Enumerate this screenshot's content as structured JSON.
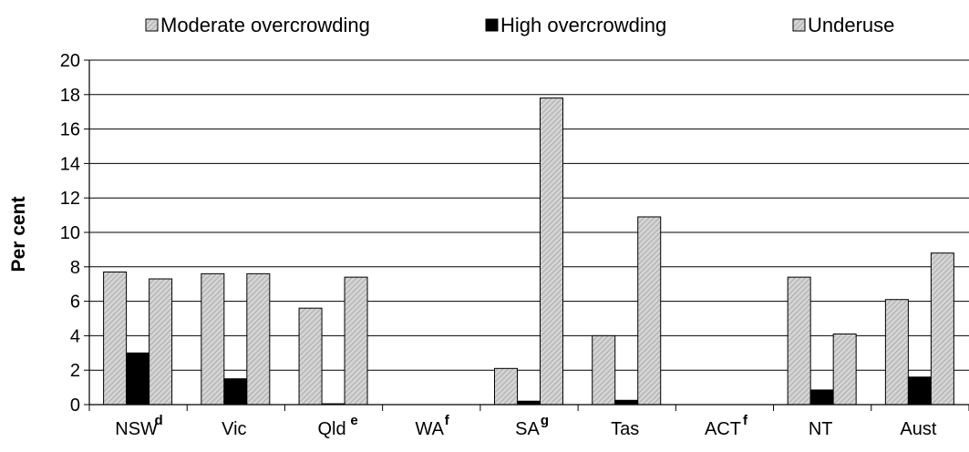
{
  "chart_data": {
    "type": "bar",
    "categories": [
      "NSW",
      "Vic",
      "Qld",
      "WA",
      "SA",
      "Tas",
      "ACT",
      "NT",
      "Aust"
    ],
    "category_superscripts": [
      "d",
      "",
      "e",
      "f",
      "g",
      "",
      "f",
      "",
      ""
    ],
    "series": [
      {
        "name": "Moderate overcrowding",
        "values": [
          7.7,
          7.6,
          5.6,
          null,
          2.1,
          4.0,
          null,
          7.4,
          6.1
        ],
        "color": "#c8c8c8",
        "pattern": "hatch"
      },
      {
        "name": "High overcrowding",
        "values": [
          3.0,
          1.5,
          0.05,
          null,
          0.2,
          0.25,
          null,
          0.85,
          1.6
        ],
        "color": "#000000",
        "pattern": "solid"
      },
      {
        "name": "Underuse",
        "values": [
          7.3,
          7.6,
          7.4,
          null,
          17.8,
          10.9,
          null,
          4.1,
          8.8
        ],
        "color": "#c8c8c8",
        "pattern": "hatch"
      }
    ],
    "ylabel": "Per cent",
    "xlabel": "",
    "ylim": [
      0,
      20
    ],
    "yticks": [
      0,
      2,
      4,
      6,
      8,
      10,
      12,
      14,
      16,
      18,
      20
    ],
    "grid": true,
    "legend_position": "top"
  }
}
